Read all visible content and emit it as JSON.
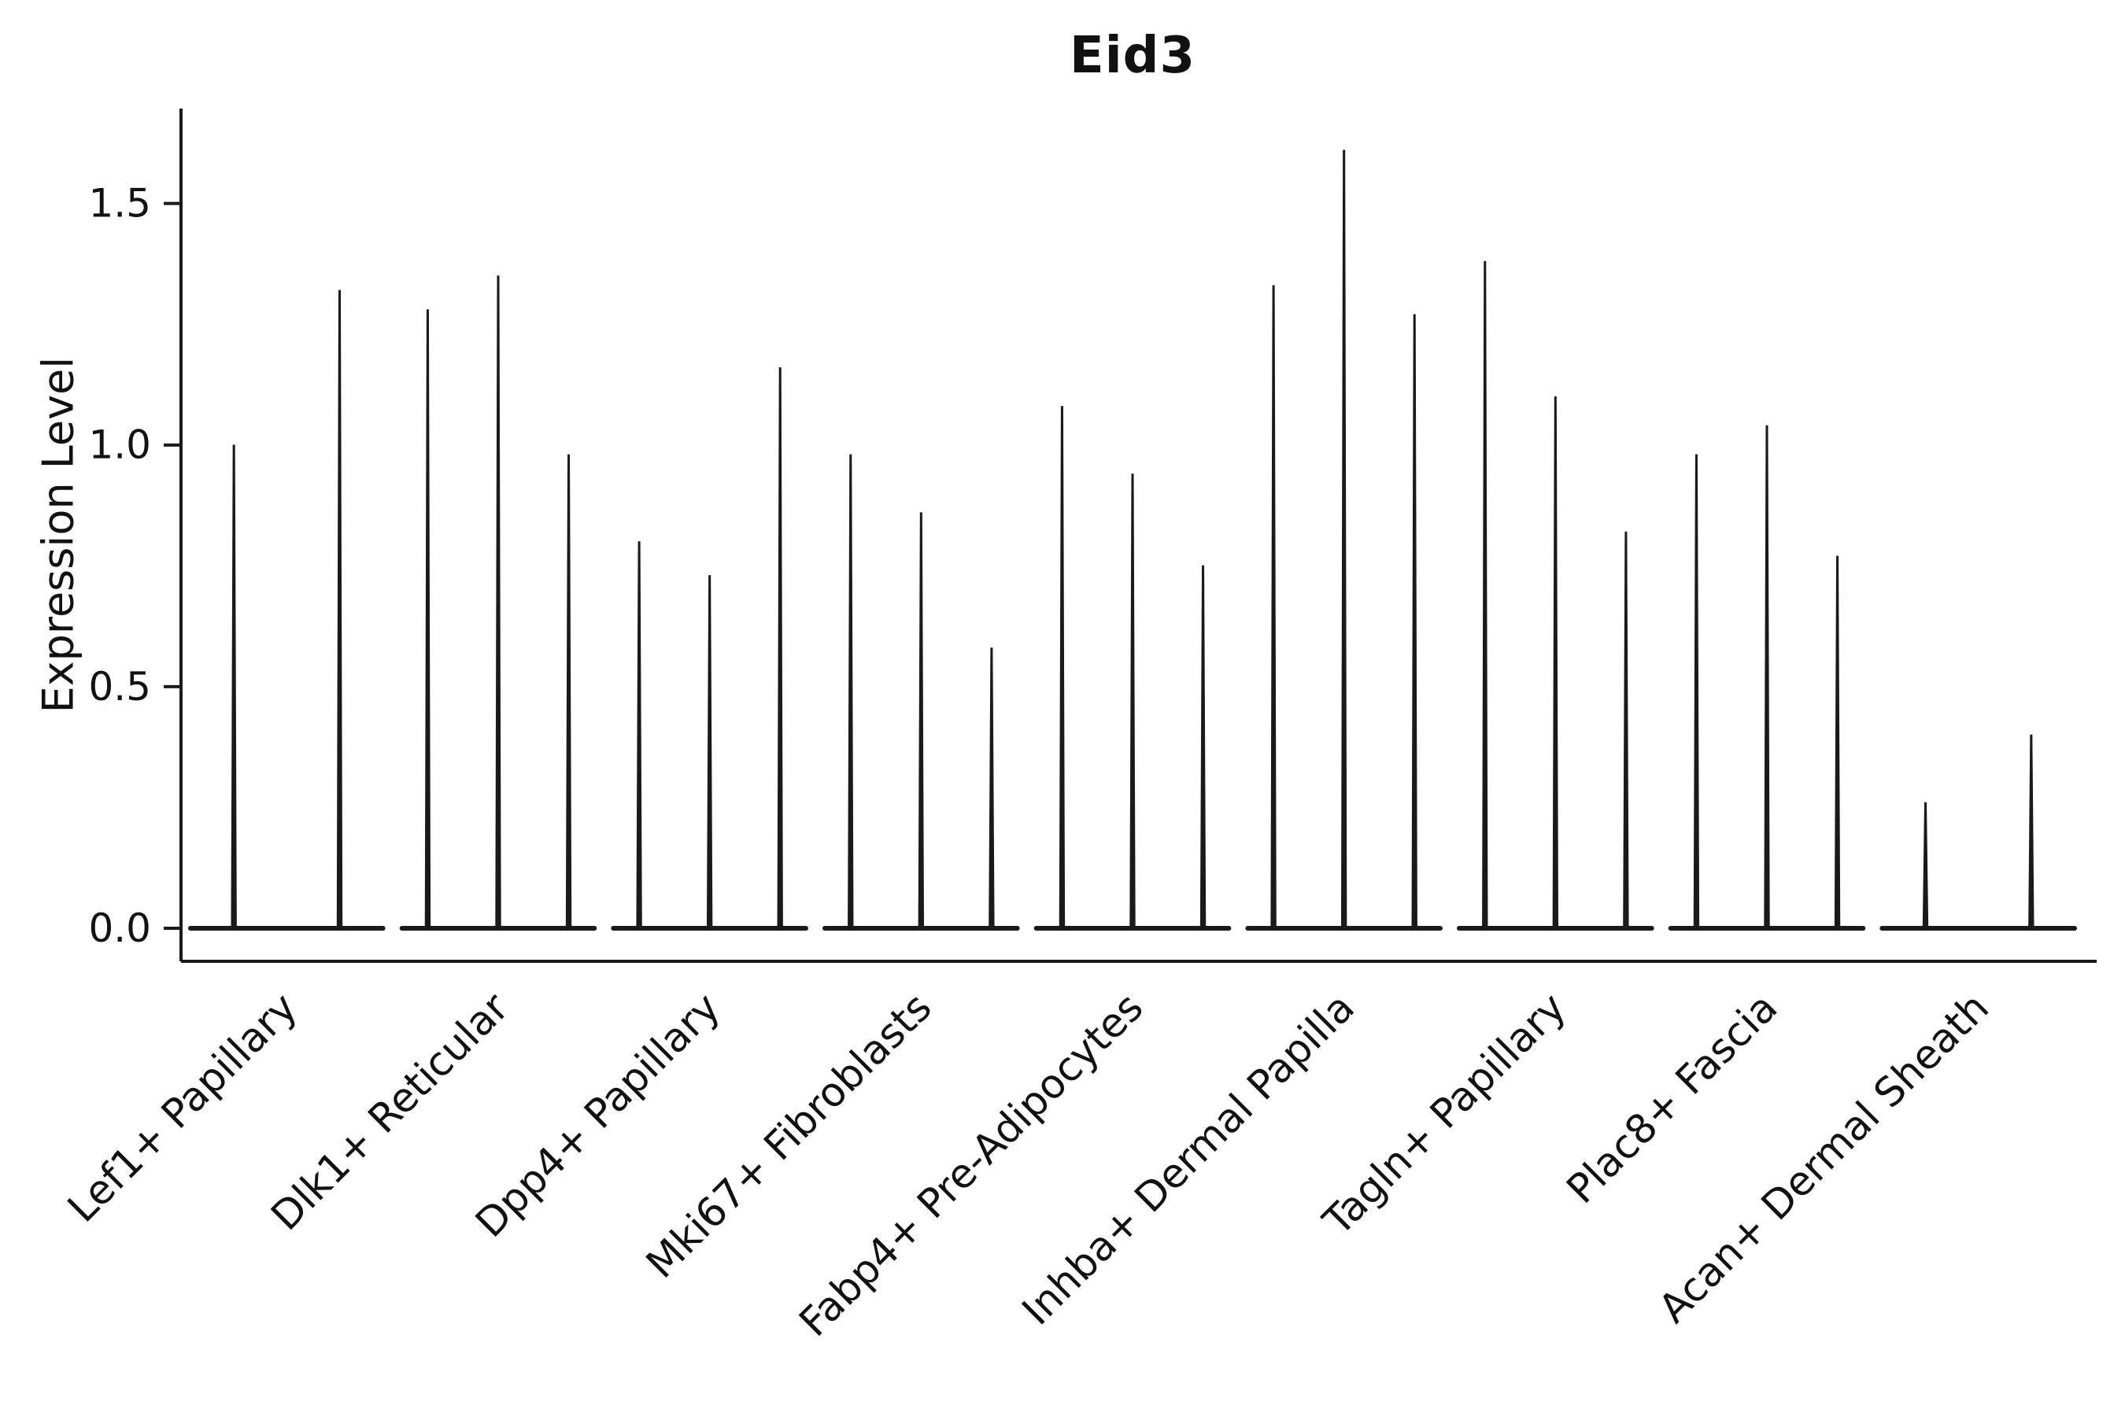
{
  "chart_data": {
    "type": "violin",
    "title": "Eid3",
    "ylabel": "Expression Level",
    "xlabel": "",
    "yticks": [
      "0.0",
      "0.5",
      "1.0",
      "1.5"
    ],
    "ylim": [
      0,
      1.68
    ],
    "grid": false,
    "legend": false,
    "color": "#1a1a1a",
    "categories": [
      "Lef1+ Papillary",
      "Dlk1+ Reticular",
      "Dpp4+ Papillary",
      "Mki67+ Fibroblasts",
      "Fabp4+ Pre-Adipocytes",
      "Inhba+ Dermal Papilla",
      "Tagln+ Papillary",
      "Plac8+ Fascia",
      "Acan+ Dermal Sheath"
    ],
    "groups": [
      {
        "category": "Lef1+ Papillary",
        "violin_max_expression": [
          1.0,
          1.32
        ]
      },
      {
        "category": "Dlk1+ Reticular",
        "violin_max_expression": [
          1.28,
          1.35,
          0.98
        ]
      },
      {
        "category": "Dpp4+ Papillary",
        "violin_max_expression": [
          0.8,
          0.73,
          1.16
        ]
      },
      {
        "category": "Mki67+ Fibroblasts",
        "violin_max_expression": [
          0.98,
          0.86,
          0.58
        ]
      },
      {
        "category": "Fabp4+ Pre-Adipocytes",
        "violin_max_expression": [
          1.08,
          0.94,
          0.75
        ]
      },
      {
        "category": "Inhba+ Dermal Papilla",
        "violin_max_expression": [
          1.33,
          1.61,
          1.27
        ]
      },
      {
        "category": "Tagln+ Papillary",
        "violin_max_expression": [
          1.38,
          1.1,
          0.82
        ]
      },
      {
        "category": "Plac8+ Fascia",
        "violin_max_expression": [
          0.98,
          1.04,
          0.77
        ]
      },
      {
        "category": "Acan+ Dermal Sheath",
        "violin_max_expression": [
          0.26,
          0.4
        ]
      }
    ],
    "description": "Violin plot of Eid3 expression level per fibroblast cluster; violins are extremely narrow (spikes) with flat bases at 0."
  }
}
